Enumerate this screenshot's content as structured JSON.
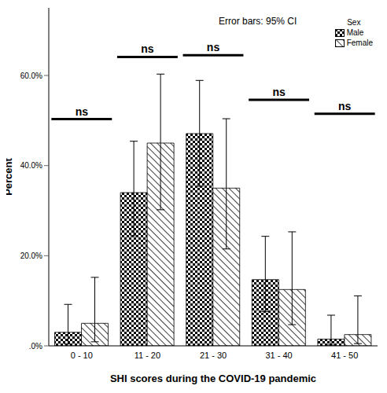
{
  "chart_data": {
    "type": "bar",
    "x_label": "SHI scores during the COVID-19 pandemic",
    "y_label": "Percent",
    "categories": [
      "0 - 10",
      "11 - 20",
      "21 - 30",
      "31 - 40",
      "41 - 50"
    ],
    "series": [
      {
        "name": "Male",
        "color": "#000000",
        "values": [
          3.0,
          34.0,
          47.1,
          14.7,
          1.5
        ],
        "ci_low": [
          0.4,
          24.4,
          35.4,
          7.6,
          0.2
        ],
        "ci_high": [
          9.2,
          45.4,
          58.9,
          24.3,
          6.8
        ]
      },
      {
        "name": "Female",
        "color": "#000000",
        "values": [
          5.0,
          45.0,
          35.0,
          12.5,
          2.5
        ],
        "ci_low": [
          0.9,
          30.2,
          21.5,
          4.7,
          0.5
        ],
        "ci_high": [
          15.2,
          60.3,
          50.4,
          25.3,
          11.1
        ]
      }
    ],
    "legend_title": "Sex",
    "legend": "top right",
    "ylim": [
      0,
      75
    ],
    "yticks": [
      {
        "value": 0,
        "label": ".0%"
      },
      {
        "value": 20,
        "label": "20.0%"
      },
      {
        "value": 40,
        "label": "40.0%"
      },
      {
        "value": 60,
        "label": "60.0%"
      }
    ],
    "grid": false,
    "annotations": [
      {
        "text": "Error bars: 95% CI"
      },
      {
        "text": "ns",
        "category": "0 - 10",
        "y": 50.3
      },
      {
        "text": "ns",
        "category": "11 - 20",
        "y": 64.1
      },
      {
        "text": "ns",
        "category": "21 - 30",
        "y": 64.5
      },
      {
        "text": "ns",
        "category": "31 - 40",
        "y": 54.6
      },
      {
        "text": "ns",
        "category": "41 - 50",
        "y": 51.5
      }
    ]
  }
}
